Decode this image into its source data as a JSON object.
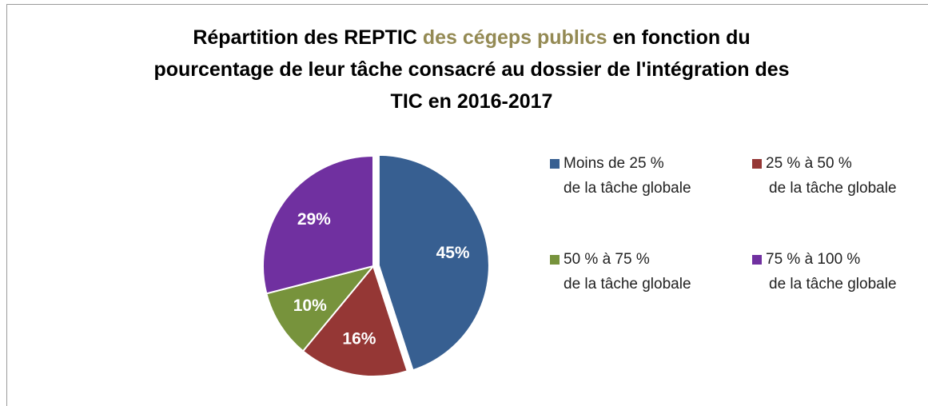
{
  "chart_data": {
    "type": "pie",
    "title": [
      [
        "Répartition des REPTIC",
        "des cégeps publics",
        "en fonction du"
      ],
      [
        "pourcentage de leur tâche consacré au dossier de l'intégration des"
      ],
      [
        "TIC en 2016-2017"
      ]
    ],
    "title_color": "#000000",
    "title_highlight_color": "#948a54",
    "categories": [
      [
        "Moins de 25 %",
        "de la tâche globale"
      ],
      [
        "25 % à  50 %",
        "de la tâche globale"
      ],
      [
        "50 % à 75 %",
        "de la tâche globale"
      ],
      [
        "75 % à 100 %",
        "de la tâche globale"
      ]
    ],
    "values": [
      45,
      16,
      10,
      29
    ],
    "value_labels": [
      "45%",
      "16%",
      "10%",
      "29%"
    ],
    "colors": [
      "#375f91",
      "#953735",
      "#77933c",
      "#7030a0"
    ],
    "exploded": [
      0
    ],
    "legend": "right"
  }
}
